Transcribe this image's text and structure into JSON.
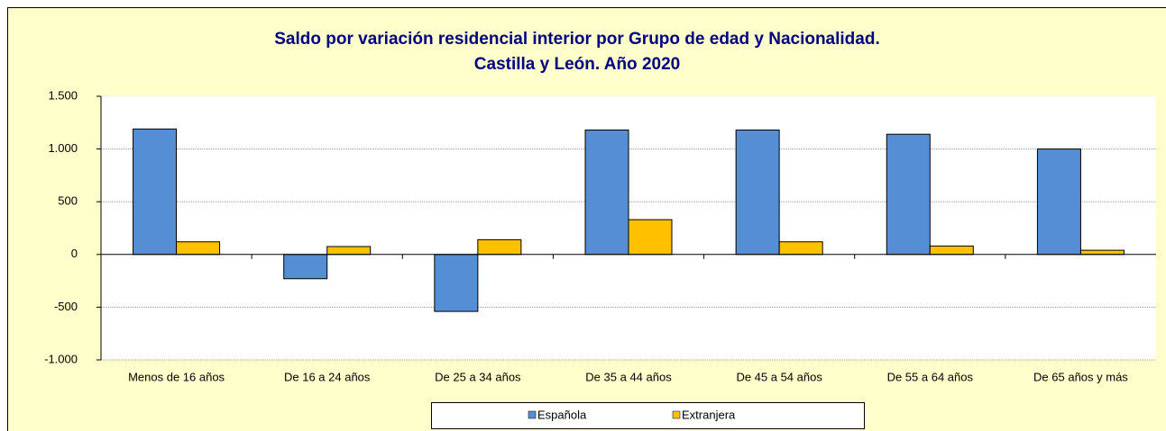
{
  "chart_data": {
    "type": "bar",
    "title": [
      "Saldo por variación residencial interior por Grupo de edad y Nacionalidad.",
      "Castilla y León. Año 2020"
    ],
    "categories": [
      "Menos de 16 años",
      "De 16 a 24 años",
      "De 25 a 34 años",
      "De 35 a 44 años",
      "De 45 a 54 años",
      "De 55 a 64 años",
      "De 65 años y más"
    ],
    "series": [
      {
        "name": "Española",
        "color": "#558ed5",
        "values": [
          1190,
          -230,
          -540,
          1180,
          1180,
          1140,
          1000
        ]
      },
      {
        "name": "Extranjera",
        "color": "#ffc000",
        "values": [
          120,
          75,
          140,
          330,
          120,
          80,
          40
        ]
      }
    ],
    "ylim": [
      -1000,
      1500
    ],
    "yticks": [
      {
        "value": -1000,
        "label": "-1.000"
      },
      -500,
      0,
      500,
      {
        "value": 1000,
        "label": "1.000"
      },
      {
        "value": 1500,
        "label": "1.500"
      }
    ],
    "grid": true,
    "legend": "bottom"
  }
}
